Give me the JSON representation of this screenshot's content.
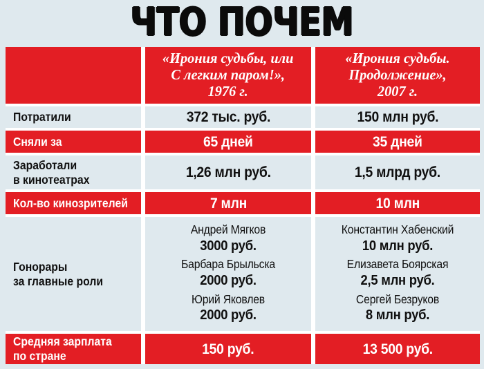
{
  "title": "ЧТО ПОЧЕМ",
  "colors": {
    "accent_red": "#e31e24",
    "row_light": "#dfe9ee",
    "gap_white": "#ffffff",
    "text_black": "#0b0b0b",
    "text_white": "#ffffff"
  },
  "table": {
    "columns": [
      {
        "header_lines": [
          "",
          "",
          ""
        ]
      },
      {
        "header_lines": [
          "«Ирония судьбы, или",
          "С легким паром!»,",
          "1976 г."
        ]
      },
      {
        "header_lines": [
          "«Ирония судьбы.",
          "Продолжение»,",
          "2007 г."
        ]
      }
    ],
    "rows": [
      {
        "label": "Потратили",
        "style": "light",
        "values": [
          "372 тыс. руб.",
          "150 млн руб."
        ]
      },
      {
        "label": "Сняли за",
        "style": "red",
        "values": [
          "65 дней",
          "35 дней"
        ]
      },
      {
        "label_lines": [
          "Заработали",
          "в кинотеатрах"
        ],
        "style": "light",
        "values": [
          "1,26 млн руб.",
          "1,5 млрд руб."
        ]
      },
      {
        "label": "Кол-во кинозрителей",
        "style": "red",
        "values": [
          "7 млн",
          "10 млн"
        ]
      },
      {
        "label_lines": [
          "Гонорары",
          "за главные роли"
        ],
        "style": "light",
        "film1": [
          {
            "name": "Андрей Мягков",
            "fee": "3000 руб."
          },
          {
            "name": "Барбара Брыльска",
            "fee": "2000 руб."
          },
          {
            "name": "Юрий Яковлев",
            "fee": "2000 руб."
          }
        ],
        "film2": [
          {
            "name": "Константин Хабенский",
            "fee": "10 млн руб."
          },
          {
            "name": "Елизавета Боярская",
            "fee": "2,5 млн руб."
          },
          {
            "name": "Сергей Безруков",
            "fee": "8 млн руб."
          }
        ]
      },
      {
        "label_lines": [
          "Средняя зарплата",
          "по стране"
        ],
        "style": "red",
        "values": [
          "150 руб.",
          "13 500 руб."
        ]
      }
    ]
  }
}
